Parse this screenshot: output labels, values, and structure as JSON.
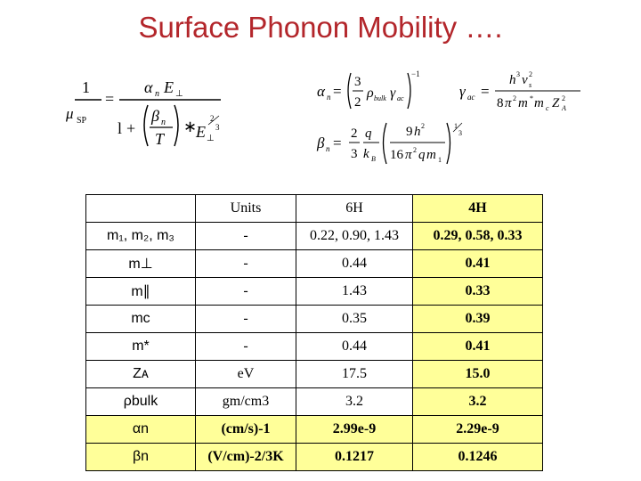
{
  "title": "Surface Phonon Mobility ….",
  "table": {
    "header": [
      "",
      "Units",
      "6H",
      "4H"
    ],
    "rows": [
      {
        "param": "m₁, m₂, m₃",
        "units": "-",
        "h6": "0.22, 0.90, 1.43",
        "h4": "0.29, 0.58, 0.33"
      },
      {
        "param": "m⊥",
        "units": "-",
        "h6": "0.44",
        "h4": "0.41"
      },
      {
        "param": "m∥",
        "units": "-",
        "h6": "1.43",
        "h4": "0.33"
      },
      {
        "param": "mᴄ",
        "units": "-",
        "h6": "0.35",
        "h4": "0.39"
      },
      {
        "param": "m*",
        "units": "-",
        "h6": "0.44",
        "h4": "0.41"
      },
      {
        "param": "Zᴀ",
        "units": "eV",
        "h6": "17.5",
        "h4": "15.0"
      },
      {
        "param": "ρbulk",
        "units": "gm/cm3",
        "h6": "3.2",
        "h4": "3.2"
      },
      {
        "param": "αn",
        "units": "(cm/s)-1",
        "h6": "2.99e-9",
        "h4": "2.29e-9"
      },
      {
        "param": "βn",
        "units": "(V/cm)-2/3K",
        "h6": "0.1217",
        "h4": "0.1246"
      }
    ]
  }
}
